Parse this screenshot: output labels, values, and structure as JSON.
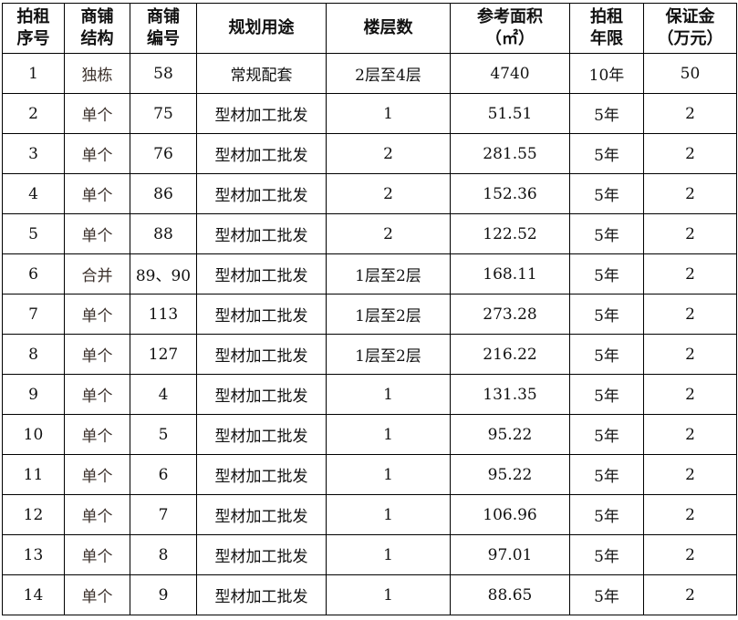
{
  "headers": [
    [
      "拍租",
      "序号"
    ],
    [
      "商铺",
      "结构"
    ],
    [
      "商铺",
      "编号"
    ],
    [
      "规划用途"
    ],
    [
      "楼层数"
    ],
    [
      "参考面积",
      "（㎡）"
    ],
    [
      "拍租",
      "年限"
    ],
    [
      "保证金",
      "（万元）"
    ]
  ],
  "rows": [
    [
      "1",
      "独栋",
      "58",
      "常规配套",
      "2层至4层",
      "4740",
      "10年",
      "50"
    ],
    [
      "2",
      "单个",
      "75",
      "型材加工批发",
      "1",
      "51.51",
      "5年",
      "2"
    ],
    [
      "3",
      "单个",
      "76",
      "型材加工批发",
      "2",
      "281.55",
      "5年",
      "2"
    ],
    [
      "4",
      "单个",
      "86",
      "型材加工批发",
      "2",
      "152.36",
      "5年",
      "2"
    ],
    [
      "5",
      "单个",
      "88",
      "型材加工批发",
      "2",
      "122.52",
      "5年",
      "2"
    ],
    [
      "6",
      "合并",
      "89、90",
      "型材加工批发",
      "1层至2层",
      "168.11",
      "5年",
      "2"
    ],
    [
      "7",
      "单个",
      "113",
      "型材加工批发",
      "1层至2层",
      "273.28",
      "5年",
      "2"
    ],
    [
      "8",
      "单个",
      "127",
      "型材加工批发",
      "1层至2层",
      "216.22",
      "5年",
      "2"
    ],
    [
      "9",
      "单个",
      "4",
      "型材加工批发",
      "1",
      "131.35",
      "5年",
      "2"
    ],
    [
      "10",
      "单个",
      "5",
      "型材加工批发",
      "1",
      "95.22",
      "5年",
      "2"
    ],
    [
      "11",
      "单个",
      "6",
      "型材加工批发",
      "1",
      "95.22",
      "5年",
      "2"
    ],
    [
      "12",
      "单个",
      "7",
      "型材加工批发",
      "1",
      "106.96",
      "5年",
      "2"
    ],
    [
      "13",
      "单个",
      "8",
      "型材加工批发",
      "1",
      "97.01",
      "5年",
      "2"
    ],
    [
      "14",
      "单个",
      "9",
      "型材加工批发",
      "1",
      "88.65",
      "5年",
      "2"
    ]
  ]
}
